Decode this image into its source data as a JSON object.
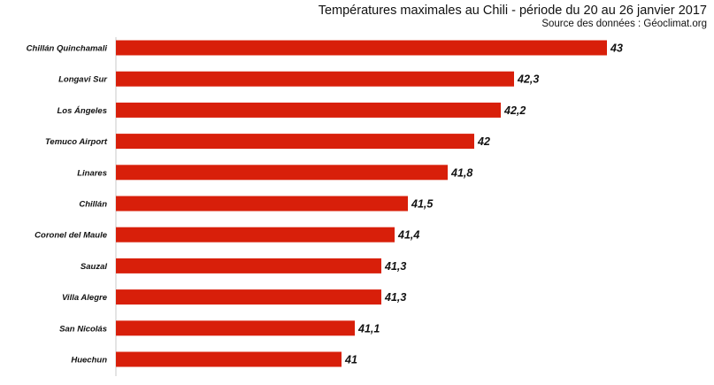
{
  "chart_data": {
    "type": "bar",
    "orientation": "horizontal",
    "title": "Températures maximales au Chili - période du 20 au 26 janvier 2017",
    "subtitle": "Source des données : Géoclimat.org",
    "categories": [
      "Chillán  Quinchamali",
      "Longavi Sur",
      "Los Ángeles",
      "Temuco  Airport",
      "Linares",
      "Chillán",
      "Coronel del Maule",
      "Sauzal",
      "Villa Alegre",
      "San Nicolás",
      "Huechun"
    ],
    "values": [
      43,
      42.3,
      42.2,
      42,
      41.8,
      41.5,
      41.4,
      41.3,
      41.3,
      41.1,
      41
    ],
    "value_labels": [
      "43",
      "42,3",
      "42,2",
      "42",
      "41,8",
      "41,5",
      "41,4",
      "41,3",
      "41,3",
      "41,1",
      "41"
    ],
    "xlim": [
      39.3,
      43
    ],
    "bar_color": "#d81f0a",
    "grid": false,
    "legend": "none"
  }
}
